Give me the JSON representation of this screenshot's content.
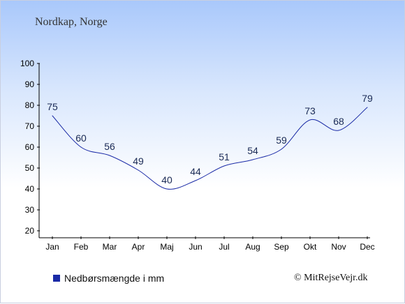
{
  "header": {
    "title": "Nordkap, Norge"
  },
  "legend": {
    "label": "Nedbørsmængde i mm",
    "color": "#1a2aa6"
  },
  "footer": {
    "credit": "© MitRejseVejr.dk"
  },
  "chart_data": {
    "type": "line",
    "categories": [
      "Jan",
      "Feb",
      "Mar",
      "Apr",
      "Maj",
      "Jun",
      "Jul",
      "Aug",
      "Sep",
      "Okt",
      "Nov",
      "Dec"
    ],
    "series": [
      {
        "name": "Nedbørsmængde i mm",
        "values": [
          75,
          60,
          56,
          49,
          40,
          44,
          51,
          54,
          59,
          73,
          68,
          79
        ],
        "color": "#1a2aa6"
      }
    ],
    "ylim": [
      20,
      100
    ],
    "yticks": [
      20,
      30,
      40,
      50,
      60,
      70,
      80,
      90,
      100
    ],
    "grid": false,
    "legend_position": "bottom-left"
  }
}
